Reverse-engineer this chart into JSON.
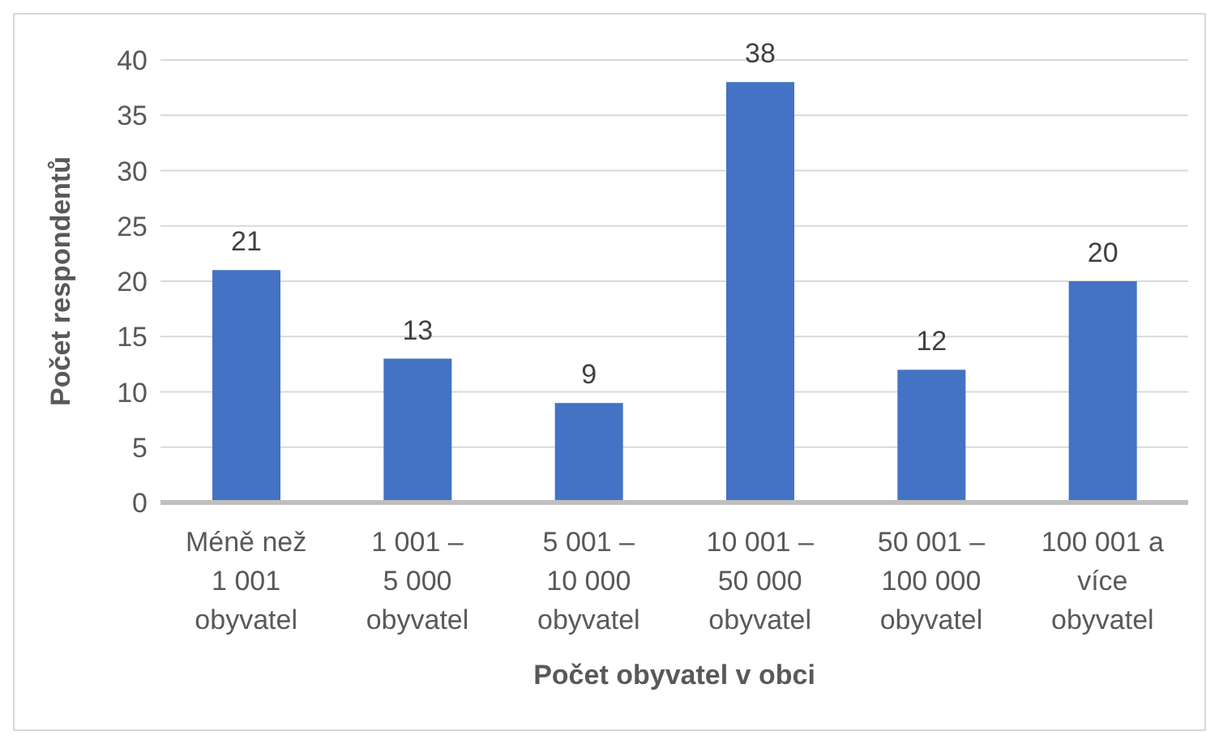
{
  "chart_data": {
    "type": "bar",
    "xlabel": "Počet obyvatel v obci",
    "ylabel": "Počet respondentů",
    "categories": [
      "Méně než 1 001 obyvatel",
      "1 001 – 5 000 obyvatel",
      "5 001 – 10 000 obyvatel",
      "10 001 – 50 000 obyvatel",
      "50 001 – 100 000 obyvatel",
      "100 001 a více obyvatel"
    ],
    "values": [
      21,
      13,
      9,
      38,
      12,
      20
    ],
    "color": "#4472c4",
    "ylim": [
      0,
      40
    ],
    "yticks": [
      0,
      5,
      10,
      15,
      20,
      25,
      30,
      35,
      40
    ],
    "grid": "y",
    "data_labels": true
  }
}
